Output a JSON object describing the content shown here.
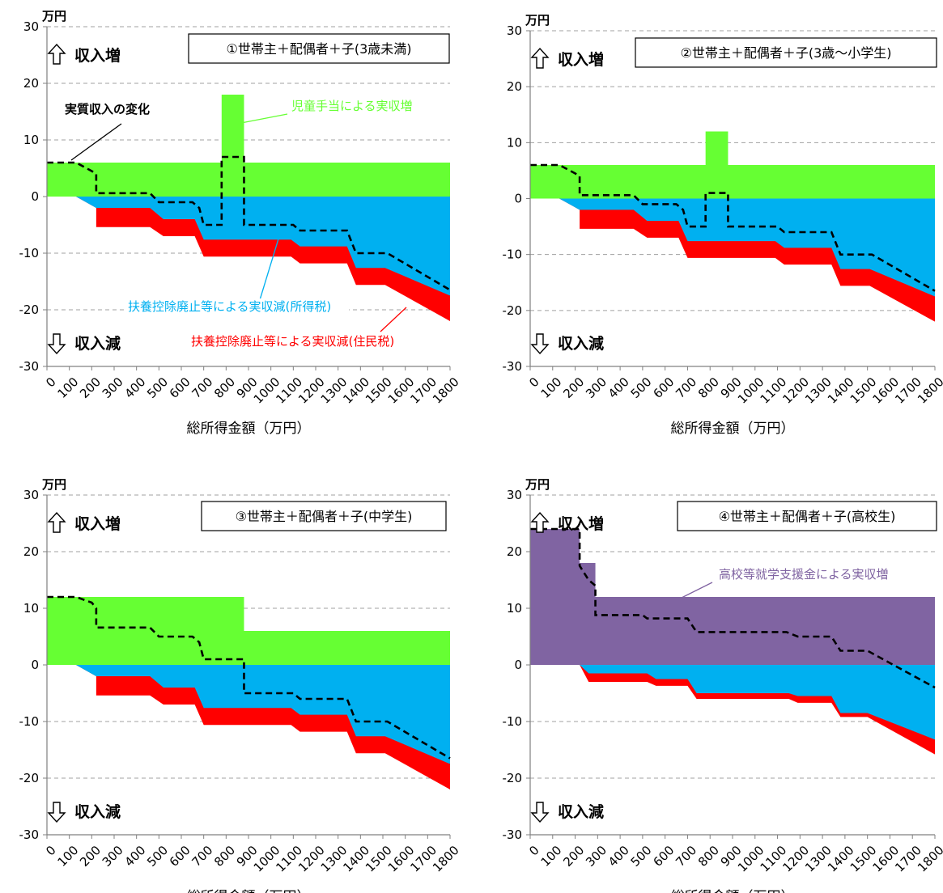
{
  "colors": {
    "child_allowance": "#66ff33",
    "income_tax_loss": "#00b0f0",
    "resident_tax_loss": "#ff0000",
    "tuition_support": "#8064a2",
    "net_change_line": "#000000",
    "grid": "#a0a0a0"
  },
  "icons": {
    "up": "arrow-up-outline-icon",
    "down": "arrow-down-outline-icon"
  },
  "chart_data": [
    {
      "type": "area",
      "title": "①世帯主＋配偶者＋子(3歳未満)",
      "xlabel": "総所得金額（万円）",
      "ylabel": "万円",
      "ylim": [
        -30,
        30
      ],
      "xlim": [
        0,
        1800
      ],
      "yticks": [
        "30",
        "20",
        "10",
        "0",
        "-10",
        "-20",
        "-30"
      ],
      "xticks": [
        "0",
        "100",
        "200",
        "300",
        "400",
        "500",
        "600",
        "700",
        "800",
        "900",
        "1000",
        "1100",
        "1200",
        "1300",
        "1400",
        "1500",
        "1600",
        "1700",
        "1800"
      ],
      "grid": true,
      "up_label": "収入増",
      "down_label": "収入減",
      "annotations": [
        {
          "text": "実質収入の変化",
          "color": "#000000"
        },
        {
          "text": "児童手当による実収増",
          "color": "#66ff33"
        },
        {
          "text": "扶養控除廃止等による実収減(所得税)",
          "color": "#00b0f0"
        },
        {
          "text": "扶養控除廃止等による実収減(住民税)",
          "color": "#ff0000"
        }
      ],
      "series": [
        {
          "name": "児童手当による実収増",
          "kind": "positive",
          "color": "#66ff33",
          "x": [
            0,
            780,
            780,
            880,
            880,
            1800
          ],
          "y": [
            6,
            6,
            18,
            18,
            6,
            6
          ]
        },
        {
          "name": "扶養控除廃止等による実収減(所得税)",
          "kind": "negative",
          "color": "#00b0f0",
          "x": [
            0,
            130,
            220,
            460,
            520,
            660,
            700,
            1090,
            1130,
            1340,
            1380,
            1510,
            1800
          ],
          "y": [
            0,
            0,
            -2,
            -2,
            -4,
            -4,
            -7.6,
            -7.6,
            -8.8,
            -8.8,
            -12.6,
            -12.6,
            -17.5
          ]
        },
        {
          "name": "扶養控除廃止等による実収減(住民税)",
          "kind": "negative",
          "color": "#ff0000",
          "x": [
            0,
            130,
            220,
            220,
            460,
            520,
            660,
            700,
            1090,
            1130,
            1340,
            1380,
            1510,
            1800
          ],
          "y": [
            0,
            0,
            -2,
            -5.4,
            -5.4,
            -7,
            -7,
            -10.6,
            -10.6,
            -11.8,
            -11.8,
            -15.6,
            -15.6,
            -22
          ]
        },
        {
          "name": "実質収入の変化",
          "kind": "line",
          "color": "#000000",
          "x": [
            0,
            130,
            200,
            220,
            220,
            460,
            490,
            500,
            650,
            680,
            700,
            780,
            780,
            880,
            880,
            1100,
            1130,
            1340,
            1380,
            1520,
            1800
          ],
          "y": [
            6,
            6,
            4.5,
            4,
            0.6,
            0.6,
            -0.6,
            -1,
            -1,
            -2,
            -5,
            -5,
            7,
            7,
            -5,
            -5,
            -6,
            -6,
            -10,
            -10,
            -16.5
          ]
        }
      ]
    },
    {
      "type": "area",
      "title": "②世帯主＋配偶者＋子(3歳～小学生)",
      "xlabel": "総所得金額（万円）",
      "ylabel": "万円",
      "ylim": [
        -30,
        30
      ],
      "xlim": [
        0,
        1800
      ],
      "yticks": [
        "30",
        "20",
        "10",
        "0",
        "-10",
        "-20",
        "-30"
      ],
      "xticks": [
        "0",
        "100",
        "200",
        "300",
        "400",
        "500",
        "600",
        "700",
        "800",
        "900",
        "1000",
        "1100",
        "1200",
        "1300",
        "1400",
        "1500",
        "1600",
        "1700",
        "1800"
      ],
      "grid": true,
      "up_label": "収入増",
      "down_label": "収入減",
      "annotations": [],
      "series": [
        {
          "name": "児童手当による実収増",
          "kind": "positive",
          "color": "#66ff33",
          "x": [
            0,
            780,
            780,
            880,
            880,
            1800
          ],
          "y": [
            6,
            6,
            12,
            12,
            6,
            6
          ]
        },
        {
          "name": "扶養控除廃止等による実収減(所得税)",
          "kind": "negative",
          "color": "#00b0f0",
          "x": [
            0,
            130,
            220,
            460,
            520,
            660,
            700,
            1090,
            1130,
            1340,
            1380,
            1510,
            1800
          ],
          "y": [
            0,
            0,
            -2,
            -2,
            -4,
            -4,
            -7.6,
            -7.6,
            -8.8,
            -8.8,
            -12.6,
            -12.6,
            -17.5
          ]
        },
        {
          "name": "扶養控除廃止等による実収減(住民税)",
          "kind": "negative",
          "color": "#ff0000",
          "x": [
            0,
            130,
            220,
            220,
            460,
            520,
            660,
            700,
            1090,
            1130,
            1340,
            1380,
            1510,
            1800
          ],
          "y": [
            0,
            0,
            -2,
            -5.4,
            -5.4,
            -7,
            -7,
            -10.6,
            -10.6,
            -11.8,
            -11.8,
            -15.6,
            -15.6,
            -22
          ]
        },
        {
          "name": "実質収入の変化",
          "kind": "line",
          "color": "#000000",
          "x": [
            0,
            130,
            200,
            220,
            220,
            460,
            490,
            500,
            650,
            680,
            700,
            780,
            780,
            880,
            880,
            1100,
            1130,
            1340,
            1380,
            1520,
            1800
          ],
          "y": [
            6,
            6,
            4.5,
            4,
            0.6,
            0.6,
            -0.6,
            -1,
            -1,
            -2,
            -5,
            -5,
            1,
            1,
            -5,
            -5,
            -6,
            -6,
            -10,
            -10,
            -16.5
          ]
        }
      ]
    },
    {
      "type": "area",
      "title": "③世帯主＋配偶者＋子(中学生)",
      "xlabel": "総所得金額（万円）",
      "ylabel": "万円",
      "ylim": [
        -30,
        30
      ],
      "xlim": [
        0,
        1800
      ],
      "yticks": [
        "30",
        "20",
        "10",
        "0",
        "-10",
        "-20",
        "-30"
      ],
      "xticks": [
        "0",
        "100",
        "200",
        "300",
        "400",
        "500",
        "600",
        "700",
        "800",
        "900",
        "1000",
        "1100",
        "1200",
        "1300",
        "1400",
        "1500",
        "1600",
        "1700",
        "1800"
      ],
      "grid": true,
      "up_label": "収入増",
      "down_label": "収入減",
      "annotations": [],
      "series": [
        {
          "name": "児童手当による実収増",
          "kind": "positive",
          "color": "#66ff33",
          "x": [
            0,
            880,
            880,
            1800
          ],
          "y": [
            12,
            12,
            6,
            6
          ]
        },
        {
          "name": "扶養控除廃止等による実収減(所得税)",
          "kind": "negative",
          "color": "#00b0f0",
          "x": [
            0,
            130,
            220,
            460,
            520,
            660,
            700,
            1090,
            1130,
            1340,
            1380,
            1510,
            1800
          ],
          "y": [
            0,
            0,
            -2,
            -2,
            -4,
            -4,
            -7.6,
            -7.6,
            -8.8,
            -8.8,
            -12.6,
            -12.6,
            -17.5
          ]
        },
        {
          "name": "扶養控除廃止等による実収減(住民税)",
          "kind": "negative",
          "color": "#ff0000",
          "x": [
            0,
            130,
            220,
            220,
            460,
            520,
            660,
            700,
            1090,
            1130,
            1340,
            1380,
            1510,
            1800
          ],
          "y": [
            0,
            0,
            -2,
            -5.4,
            -5.4,
            -7,
            -7,
            -10.6,
            -10.6,
            -11.8,
            -11.8,
            -15.6,
            -15.6,
            -22
          ]
        },
        {
          "name": "実質収入の変化",
          "kind": "line",
          "color": "#000000",
          "x": [
            0,
            130,
            200,
            220,
            220,
            460,
            490,
            500,
            650,
            680,
            700,
            880,
            880,
            1100,
            1130,
            1340,
            1380,
            1520,
            1800
          ],
          "y": [
            12,
            12,
            11,
            10,
            6.6,
            6.6,
            5.4,
            5,
            5,
            4,
            1,
            1,
            -5,
            -5,
            -6,
            -6,
            -10,
            -10,
            -16.5
          ]
        }
      ]
    },
    {
      "type": "area",
      "title": "④世帯主＋配偶者＋子(高校生)",
      "xlabel": "総所得金額（万円）",
      "ylabel": "万円",
      "ylim": [
        -30,
        30
      ],
      "xlim": [
        0,
        1800
      ],
      "yticks": [
        "30",
        "20",
        "10",
        "0",
        "-10",
        "-20",
        "-30"
      ],
      "xticks": [
        "0",
        "100",
        "200",
        "300",
        "400",
        "500",
        "600",
        "700",
        "800",
        "900",
        "1000",
        "1100",
        "1200",
        "1300",
        "1400",
        "1500",
        "1600",
        "1700",
        "1800"
      ],
      "grid": true,
      "up_label": "収入増",
      "down_label": "収入減",
      "annotations": [
        {
          "text": "高校等就学支援金による実収増",
          "color": "#8064a2"
        }
      ],
      "series": [
        {
          "name": "高校等就学支援金による実収増",
          "kind": "positive",
          "color": "#8064a2",
          "x": [
            0,
            220,
            220,
            290,
            290,
            1800
          ],
          "y": [
            24,
            24,
            18,
            18,
            12,
            12
          ]
        },
        {
          "name": "扶養控除廃止等による実収減(所得税)",
          "kind": "negative",
          "color": "#00b0f0",
          "x": [
            0,
            220,
            260,
            520,
            560,
            700,
            740,
            1150,
            1190,
            1340,
            1380,
            1500,
            1800
          ],
          "y": [
            0,
            0,
            -1.5,
            -1.5,
            -2.5,
            -2.5,
            -5,
            -5,
            -5.5,
            -5.5,
            -8.5,
            -8.5,
            -13.2
          ]
        },
        {
          "name": "扶養控除廃止等による実収減(住民税)",
          "kind": "negative",
          "color": "#ff0000",
          "x": [
            0,
            220,
            260,
            520,
            560,
            700,
            740,
            1150,
            1190,
            1340,
            1380,
            1500,
            1800
          ],
          "y": [
            0,
            0,
            -3,
            -3,
            -3.7,
            -3.7,
            -6,
            -6,
            -6.7,
            -6.7,
            -9.2,
            -9.2,
            -15.8
          ]
        },
        {
          "name": "実質収入の変化",
          "kind": "line",
          "color": "#000000",
          "x": [
            0,
            220,
            220,
            260,
            290,
            290,
            500,
            520,
            700,
            740,
            1140,
            1190,
            1340,
            1380,
            1500,
            1800
          ],
          "y": [
            24,
            24,
            17.5,
            15,
            14,
            8.8,
            8.8,
            8.2,
            8.2,
            5.8,
            5.8,
            5,
            5,
            2.5,
            2.5,
            -4
          ]
        }
      ]
    }
  ]
}
